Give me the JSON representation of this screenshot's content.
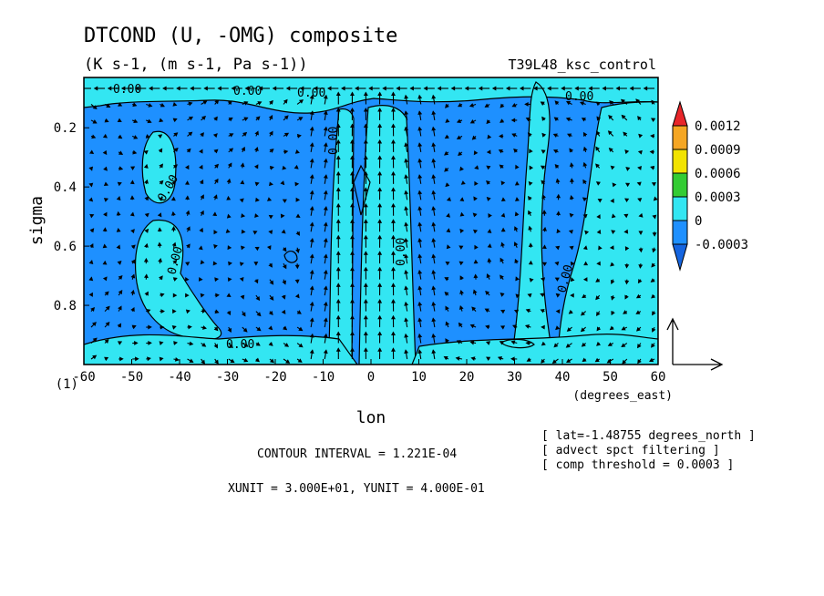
{
  "chart_data": {
    "type": "contour-vector",
    "title": "DTCOND (U, -OMG) composite",
    "subtitle": "(K s-1, (m s-1, Pa s-1))",
    "run_label": "T39L48_ksc_control",
    "xlabel": "lon",
    "xunits": "(degrees_east)",
    "ylabel": "sigma",
    "x_ticks": [
      "-60",
      "-50",
      "-40",
      "-30",
      "-20",
      "-10",
      "0",
      "10",
      "20",
      "30",
      "40",
      "50",
      "60"
    ],
    "y_ticks": [
      "0.2",
      "0.4",
      "0.6",
      "0.8",
      "(1)"
    ],
    "xlim": [
      -60,
      60
    ],
    "ylim": [
      1.0,
      0.03
    ],
    "colorbar": {
      "labels": [
        "0.0012",
        "0.0009",
        "0.0006",
        "0.0003",
        "0",
        "-0.0003"
      ],
      "colors": [
        "#e8262a",
        "#f5a623",
        "#f2e300",
        "#33cc33",
        "#33e6f2",
        "#1e90ff",
        "#1565e0"
      ]
    },
    "contour_label": "0.00",
    "contour_interval": "CONTOUR INTERVAL = 1.221E-04",
    "units_note": "XUNIT = 3.000E+01, YUNIT = 4.000E-01",
    "info_lines": [
      "[ lat=-1.48755 degrees_north ]",
      "[ advect spct filtering ]",
      "[ comp threshold = 0.0003 ]"
    ]
  }
}
